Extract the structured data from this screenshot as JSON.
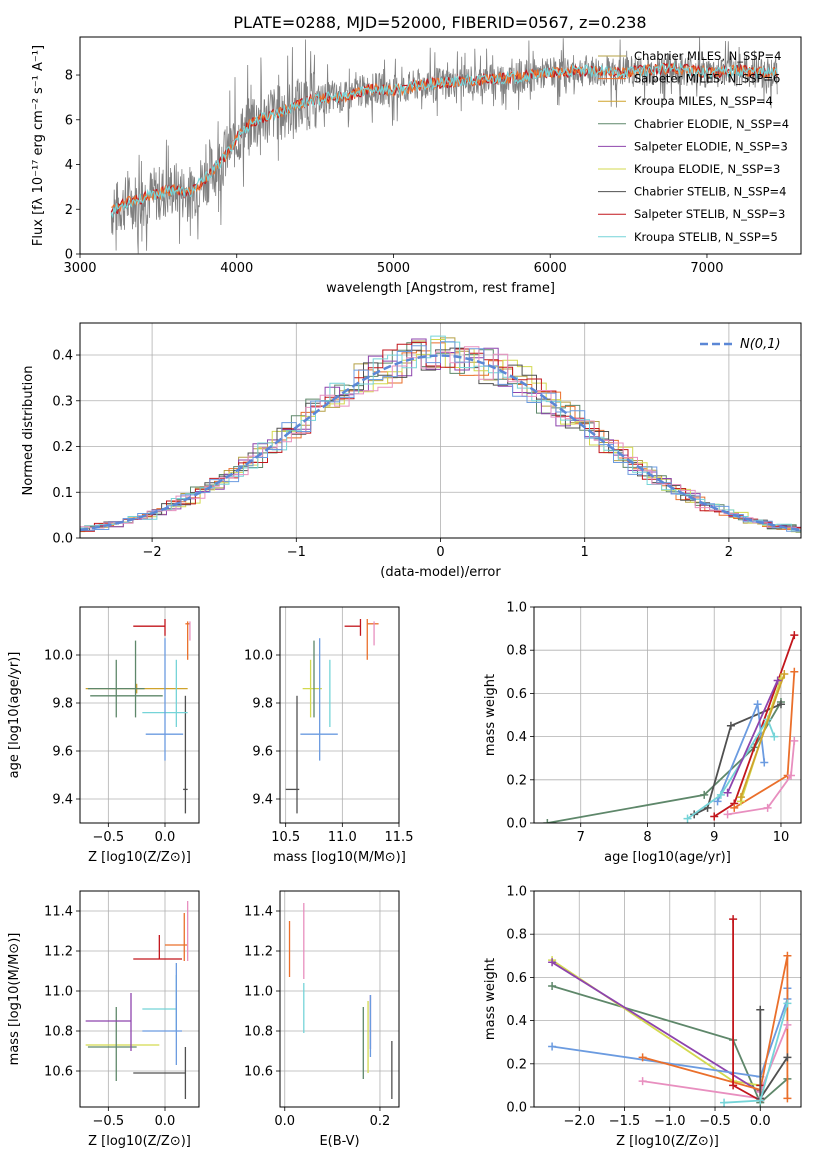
{
  "figure": {
    "title": "PLATE=0288, MJD=52000, FIBERID=0567, z=0.238"
  },
  "colors": [
    "#b5a046",
    "#ea6f2b",
    "#cfa32c",
    "#5e876a",
    "#8e44ad",
    "#d3d94f",
    "#505050",
    "#c2161c",
    "#75d4d8",
    "#e88fbf",
    "#6b9be0"
  ],
  "chart_data": [
    {
      "id": "spectrum",
      "type": "line",
      "xlabel": "wavelength [Angstrom, rest frame]",
      "ylabel": "Flux [fλ 10⁻¹⁷ erg cm⁻² s⁻¹ A⁻¹]",
      "xlim": [
        3000,
        7600
      ],
      "ylim": [
        0,
        9.7
      ],
      "xticks": [
        3000,
        4000,
        5000,
        6000,
        7000
      ],
      "yticks": [
        0,
        2,
        4,
        6,
        8
      ],
      "continuum": {
        "x": [
          3200,
          3300,
          3400,
          3500,
          3600,
          3700,
          3800,
          3900,
          4000,
          4100,
          4200,
          4300,
          4400,
          4500,
          4600,
          4700,
          4800,
          4900,
          5000,
          5200,
          5400,
          5600,
          5800,
          6000,
          6200,
          6400,
          6600,
          6800,
          7000,
          7200,
          7400
        ],
        "y": [
          1.9,
          2.3,
          2.5,
          2.7,
          2.9,
          2.7,
          3.4,
          4.1,
          5.2,
          5.9,
          6.2,
          6.4,
          6.7,
          6.9,
          7.0,
          7.0,
          7.3,
          7.4,
          7.3,
          7.6,
          7.7,
          7.8,
          7.9,
          8.1,
          8.2,
          8.1,
          8.2,
          8.3,
          8.1,
          8.2,
          8.1
        ]
      },
      "legend_position": "top-right",
      "series": [
        {
          "name": "Chabrier MILES, N_SSP=4",
          "color_index": 0
        },
        {
          "name": "Salpeter MILES, N_SSP=6",
          "color_index": 1
        },
        {
          "name": "Kroupa MILES, N_SSP=4",
          "color_index": 2
        },
        {
          "name": "Chabrier ELODIE, N_SSP=4",
          "color_index": 3
        },
        {
          "name": "Salpeter ELODIE, N_SSP=3",
          "color_index": 4
        },
        {
          "name": "Kroupa ELODIE, N_SSP=3",
          "color_index": 5
        },
        {
          "name": "Chabrier STELIB, N_SSP=4",
          "color_index": 6
        },
        {
          "name": "Salpeter STELIB, N_SSP=3",
          "color_index": 7
        },
        {
          "name": "Kroupa STELIB, N_SSP=5",
          "color_index": 8
        }
      ]
    },
    {
      "id": "residuals",
      "type": "histogram",
      "xlabel": "(data-model)/error",
      "ylabel": "Normed distribution",
      "xlim": [
        -2.5,
        2.5
      ],
      "ylim": [
        0,
        0.47
      ],
      "xticks": [
        -2,
        -1,
        0,
        1,
        2
      ],
      "yticks": [
        0.0,
        0.1,
        0.2,
        0.3,
        0.4
      ],
      "grid": true,
      "legend_position": "top-right",
      "reference_curve": {
        "name": "N(0,1)",
        "mean": 0,
        "sigma": 1,
        "color": "#5b87d6"
      }
    },
    {
      "id": "age-vs-Z",
      "type": "errorbar",
      "xlabel": "Z [log10(Z/Z⊙)]",
      "ylabel": "age  [log10(age/yr)]",
      "xlim": [
        -0.75,
        0.3
      ],
      "ylim": [
        9.3,
        10.2
      ],
      "xticks": [
        -0.5,
        0.0
      ],
      "yticks": [
        9.4,
        9.6,
        9.8,
        10.0
      ],
      "grid": true,
      "points": [
        {
          "x": -0.25,
          "xerr": [
            0.45,
            0.45
          ],
          "y": 9.86,
          "yerr": [
            0.02,
            0.02
          ],
          "color_index": 2
        },
        {
          "x": -0.26,
          "xerr": [
            0.4,
            0.24
          ],
          "y": 9.83,
          "yerr": [
            0.09,
            0.23
          ],
          "color_index": 3
        },
        {
          "x": -0.43,
          "xerr": [
            0.25,
            0.25
          ],
          "y": 9.86,
          "yerr": [
            0.12,
            0.12
          ],
          "color_index": 3
        },
        {
          "x": 0.18,
          "xerr": [
            0.02,
            0.02
          ],
          "y": 9.44,
          "yerr": [
            0.1,
            0.39
          ],
          "color_index": 6
        },
        {
          "x": 0.0,
          "xerr": [
            0.28,
            0.0
          ],
          "y": 10.12,
          "yerr": [
            0.04,
            0.03
          ],
          "color_index": 7
        },
        {
          "x": 0.2,
          "xerr": [
            0.02,
            0.02
          ],
          "y": 10.13,
          "yerr": [
            0.15,
            0.01
          ],
          "color_index": 1
        },
        {
          "x": 0.2,
          "xerr": [
            0.0,
            0.0
          ],
          "y": 10.13,
          "yerr": [
            0.0,
            0.0
          ],
          "color_index": 0
        },
        {
          "x": 0.1,
          "xerr": [
            0.3,
            0.1
          ],
          "y": 9.76,
          "yerr": [
            0.06,
            0.22
          ],
          "color_index": 8
        },
        {
          "x": 0.25,
          "xerr": [
            0.0,
            0.0
          ],
          "y": 9.76,
          "yerr": [
            0.0,
            0.0
          ],
          "color_index": 8
        },
        {
          "x": 0.22,
          "xerr": [
            0.0,
            0.0
          ],
          "y": 10.1,
          "yerr": [
            0.04,
            0.04
          ],
          "color_index": 9
        },
        {
          "x": 0.0,
          "xerr": [
            0.17,
            0.16
          ],
          "y": 9.67,
          "yerr": [
            0.11,
            0.4
          ],
          "color_index": 10
        }
      ]
    },
    {
      "id": "age-vs-mass",
      "type": "errorbar",
      "xlabel": "mass [log10(M/M⊙)]",
      "xlim": [
        10.45,
        11.5
      ],
      "ylim": [
        9.3,
        10.2
      ],
      "xticks": [
        10.5,
        11.0,
        11.5
      ],
      "yticks": [
        9.4,
        9.6,
        9.8,
        10.0
      ],
      "grid": true,
      "points": [
        {
          "x": 10.72,
          "xerr": [
            0.07,
            0.1
          ],
          "y": 9.86,
          "yerr": [
            0.12,
            0.12
          ],
          "color_index": 5
        },
        {
          "x": 10.75,
          "xerr": [
            0.0,
            0.0
          ],
          "y": 9.86,
          "yerr": [
            0.12,
            0.2
          ],
          "color_index": 3
        },
        {
          "x": 10.6,
          "xerr": [
            0.1,
            0.02
          ],
          "y": 9.44,
          "yerr": [
            0.1,
            0.39
          ],
          "color_index": 6
        },
        {
          "x": 11.16,
          "xerr": [
            0.14,
            0.0
          ],
          "y": 10.12,
          "yerr": [
            0.04,
            0.03
          ],
          "color_index": 7
        },
        {
          "x": 11.22,
          "xerr": [
            0.0,
            0.1
          ],
          "y": 10.13,
          "yerr": [
            0.15,
            0.02
          ],
          "color_index": 1
        },
        {
          "x": 11.28,
          "xerr": [
            0.0,
            0.0
          ],
          "y": 10.09,
          "yerr": [
            0.05,
            0.05
          ],
          "color_index": 9
        },
        {
          "x": 10.89,
          "xerr": [
            0.0,
            0.0
          ],
          "y": 9.76,
          "yerr": [
            0.06,
            0.22
          ],
          "color_index": 8
        },
        {
          "x": 10.8,
          "xerr": [
            0.17,
            0.16
          ],
          "y": 9.67,
          "yerr": [
            0.11,
            0.4
          ],
          "color_index": 10
        }
      ]
    },
    {
      "id": "mass-weight-vs-age",
      "type": "line",
      "xlabel": "age  [log10(age/yr)]",
      "ylabel": "mass weight",
      "xlim": [
        6.3,
        10.3
      ],
      "ylim": [
        0,
        1.0
      ],
      "xticks": [
        7,
        8,
        9,
        10
      ],
      "yticks": [
        0.0,
        0.2,
        0.4,
        0.6,
        0.8,
        1.0
      ],
      "grid": true,
      "series": [
        {
          "color_index": 3,
          "x": [
            6.5,
            8.85,
            9.6,
            10.0
          ],
          "y": [
            0.0,
            0.13,
            0.35,
            0.56
          ]
        },
        {
          "color_index": 6,
          "x": [
            8.7,
            8.9,
            9.25,
            10.0
          ],
          "y": [
            0.04,
            0.07,
            0.45,
            0.55
          ]
        },
        {
          "color_index": 7,
          "x": [
            9.0,
            9.3,
            10.2
          ],
          "y": [
            0.03,
            0.09,
            0.87
          ]
        },
        {
          "color_index": 1,
          "x": [
            9.3,
            10.1,
            10.2
          ],
          "y": [
            0.07,
            0.22,
            0.7
          ]
        },
        {
          "color_index": 9,
          "x": [
            9.2,
            9.8,
            10.15,
            10.2
          ],
          "y": [
            0.04,
            0.07,
            0.22,
            0.38
          ]
        },
        {
          "color_index": 10,
          "x": [
            9.05,
            9.65,
            9.75
          ],
          "y": [
            0.1,
            0.55,
            0.28
          ]
        },
        {
          "color_index": 8,
          "x": [
            8.6,
            9.1,
            9.8,
            9.9
          ],
          "y": [
            0.02,
            0.13,
            0.48,
            0.4
          ]
        },
        {
          "color_index": 5,
          "x": [
            9.4,
            10.0
          ],
          "y": [
            0.1,
            0.67
          ]
        },
        {
          "color_index": 2,
          "x": [
            9.4,
            10.05
          ],
          "y": [
            0.12,
            0.69
          ]
        },
        {
          "color_index": 4,
          "x": [
            9.2,
            9.95
          ],
          "y": [
            0.14,
            0.66
          ]
        }
      ]
    },
    {
      "id": "mass-vs-Z",
      "type": "errorbar",
      "xlabel": "Z [log10(Z/Z⊙)]",
      "ylabel": "mass [log10(M/M⊙)]",
      "xlim": [
        -0.75,
        0.3
      ],
      "ylim": [
        10.42,
        11.5
      ],
      "xticks": [
        -0.5,
        0.0
      ],
      "yticks": [
        10.6,
        10.8,
        11.0,
        11.2,
        11.4
      ],
      "grid": true,
      "points": [
        {
          "x": -0.25,
          "xerr": [
            0.45,
            0.2
          ],
          "y": 10.73,
          "yerr": [
            0.0,
            0.0
          ],
          "color_index": 5
        },
        {
          "x": -0.43,
          "xerr": [
            0.25,
            0.18
          ],
          "y": 10.72,
          "yerr": [
            0.17,
            0.2
          ],
          "color_index": 3
        },
        {
          "x": -0.3,
          "xerr": [
            0.4,
            0.0
          ],
          "y": 10.85,
          "yerr": [
            0.15,
            0.14
          ],
          "color_index": 4
        },
        {
          "x": -0.05,
          "xerr": [
            0.23,
            0.23
          ],
          "y": 10.59,
          "yerr": [
            0.0,
            0.0
          ],
          "color_index": 6
        },
        {
          "x": 0.18,
          "xerr": [
            0.0,
            0.0
          ],
          "y": 10.59,
          "yerr": [
            0.13,
            0.13
          ],
          "color_index": 6
        },
        {
          "x": -0.05,
          "xerr": [
            0.23,
            0.2
          ],
          "y": 11.16,
          "yerr": [
            0.0,
            0.12
          ],
          "color_index": 7
        },
        {
          "x": 0.1,
          "xerr": [
            0.1,
            0.1
          ],
          "y": 11.23,
          "yerr": [
            0.0,
            0.0
          ],
          "color_index": 1
        },
        {
          "x": 0.17,
          "xerr": [
            0.0,
            0.0
          ],
          "y": 11.23,
          "yerr": [
            0.08,
            0.16
          ],
          "color_index": 1
        },
        {
          "x": 0.2,
          "xerr": [
            0.0,
            0.0
          ],
          "y": 11.3,
          "yerr": [
            0.15,
            0.15
          ],
          "color_index": 9
        },
        {
          "x": 0.1,
          "xerr": [
            0.3,
            0.0
          ],
          "y": 10.91,
          "yerr": [
            0.11,
            0.17
          ],
          "color_index": 8
        },
        {
          "x": 0.1,
          "xerr": [
            0.3,
            0.05
          ],
          "y": 10.8,
          "yerr": [
            0.17,
            0.34
          ],
          "color_index": 10
        }
      ]
    },
    {
      "id": "mass-vs-ebv",
      "type": "errorbar",
      "xlabel": "E(B-V)",
      "xlim": [
        -0.01,
        0.24
      ],
      "ylim": [
        10.42,
        11.5
      ],
      "xticks": [
        0.0,
        0.2
      ],
      "yticks": [
        10.6,
        10.8,
        11.0,
        11.2,
        11.4
      ],
      "grid": true,
      "points": [
        {
          "x": 0.01,
          "y": 11.23,
          "yerr": [
            0.16,
            0.12
          ],
          "color_index": 1
        },
        {
          "x": 0.04,
          "y": 11.26,
          "yerr": [
            0.2,
            0.18
          ],
          "color_index": 9
        },
        {
          "x": 0.04,
          "y": 10.91,
          "yerr": [
            0.12,
            0.13
          ],
          "color_index": 8
        },
        {
          "x": 0.165,
          "y": 10.73,
          "yerr": [
            0.17,
            0.19
          ],
          "color_index": 3
        },
        {
          "x": 0.175,
          "y": 10.76,
          "yerr": [
            0.17,
            0.19
          ],
          "color_index": 5
        },
        {
          "x": 0.18,
          "y": 10.85,
          "yerr": [
            0.14,
            0.13
          ],
          "color_index": 4
        },
        {
          "x": 0.18,
          "y": 10.84,
          "yerr": [
            0.17,
            0.14
          ],
          "color_index": 10
        },
        {
          "x": 0.225,
          "y": 10.59,
          "yerr": [
            0.13,
            0.16
          ],
          "color_index": 6
        }
      ]
    },
    {
      "id": "mass-weight-vs-Z",
      "type": "line",
      "xlabel": "Z [log10(Z/Z⊙)]",
      "ylabel": "mass weight",
      "xlim": [
        -2.5,
        0.45
      ],
      "ylim": [
        0,
        1.0
      ],
      "xticks": [
        -2.0,
        -1.5,
        -1.0,
        -0.5,
        0.0
      ],
      "yticks": [
        0.0,
        0.2,
        0.4,
        0.6,
        0.8,
        1.0
      ],
      "grid": true,
      "series": [
        {
          "color_index": 3,
          "x": [
            -2.3,
            -0.3,
            0.0,
            0.3
          ],
          "y": [
            0.56,
            0.31,
            0.02,
            0.13
          ]
        },
        {
          "color_index": 5,
          "x": [
            -2.3,
            -0.3,
            0.0
          ],
          "y": [
            0.68,
            0.12,
            0.1
          ]
        },
        {
          "color_index": 4,
          "x": [
            -2.3,
            0.0
          ],
          "y": [
            0.67,
            0.07
          ]
        },
        {
          "color_index": 10,
          "x": [
            -2.3,
            0.0,
            0.3,
            0.3
          ],
          "y": [
            0.28,
            0.14,
            0.5,
            0.55
          ]
        },
        {
          "color_index": 1,
          "x": [
            -1.3,
            0.0,
            0.3,
            0.3
          ],
          "y": [
            0.23,
            0.08,
            0.7,
            0.04
          ]
        },
        {
          "color_index": 9,
          "x": [
            -1.3,
            0.0,
            0.0,
            0.3
          ],
          "y": [
            0.12,
            0.04,
            0.07,
            0.38
          ]
        },
        {
          "color_index": 7,
          "x": [
            -0.3,
            -0.3,
            0.0,
            0.0
          ],
          "y": [
            0.87,
            0.1,
            0.03,
            0.1
          ]
        },
        {
          "color_index": 6,
          "x": [
            0.0,
            0.0,
            0.3
          ],
          "y": [
            0.45,
            0.04,
            0.23
          ]
        },
        {
          "color_index": 8,
          "x": [
            -0.4,
            0.0,
            0.3
          ],
          "y": [
            0.02,
            0.03,
            0.48
          ]
        }
      ]
    }
  ]
}
